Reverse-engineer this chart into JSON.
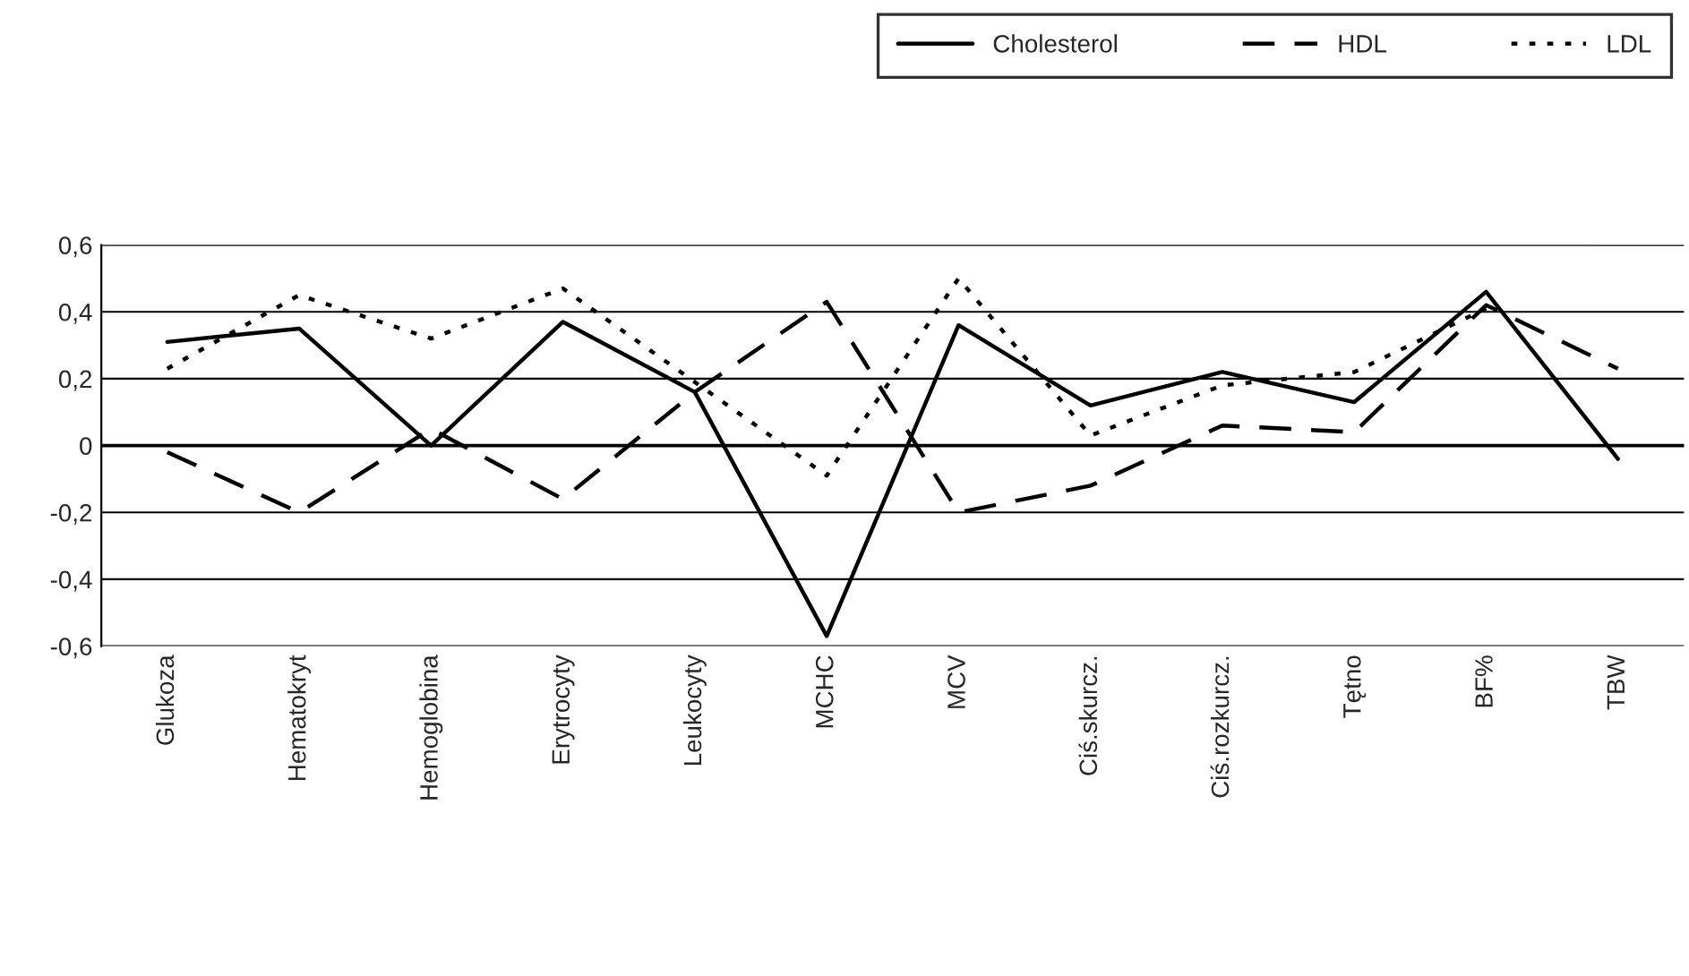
{
  "chart_data": {
    "type": "line",
    "categories": [
      "Glukoza",
      "Hematokryt",
      "Hemoglobina",
      "Erytrocyty",
      "Leukocyty",
      "MCHC",
      "MCV",
      "Ciś.skurcz.",
      "Ciś.rozkurcz.",
      "Tętno",
      "BF%",
      "TBW"
    ],
    "series": [
      {
        "name": "Cholesterol",
        "color": "#000000",
        "line_style": "solid",
        "values": [
          0.31,
          0.35,
          0.0,
          0.37,
          0.16,
          -0.57,
          0.36,
          0.12,
          0.22,
          0.13,
          0.46,
          -0.04
        ]
      },
      {
        "name": "HDL",
        "color": "#000000",
        "line_style": "dashed",
        "values": [
          -0.02,
          -0.2,
          0.05,
          -0.16,
          0.16,
          0.43,
          -0.2,
          -0.12,
          0.06,
          0.04,
          0.42,
          0.23
        ]
      },
      {
        "name": "LDL",
        "color": "#000000",
        "line_style": "dotted",
        "values": [
          0.23,
          0.45,
          0.32,
          0.47,
          0.19,
          -0.09,
          0.5,
          0.03,
          0.18,
          0.22,
          0.41,
          null
        ]
      }
    ],
    "ylim": [
      -0.6,
      0.6
    ],
    "yticks": [
      {
        "value": -0.6,
        "label": "-0,6"
      },
      {
        "value": -0.4,
        "label": "-0,4"
      },
      {
        "value": -0.2,
        "label": "-0,2"
      },
      0,
      {
        "value": 0.2,
        "label": "0,2"
      },
      {
        "value": 0.4,
        "label": "0,4"
      },
      {
        "value": 0.6,
        "label": "0,6"
      }
    ],
    "grid": "y",
    "legend": "top right",
    "marker": "none"
  }
}
